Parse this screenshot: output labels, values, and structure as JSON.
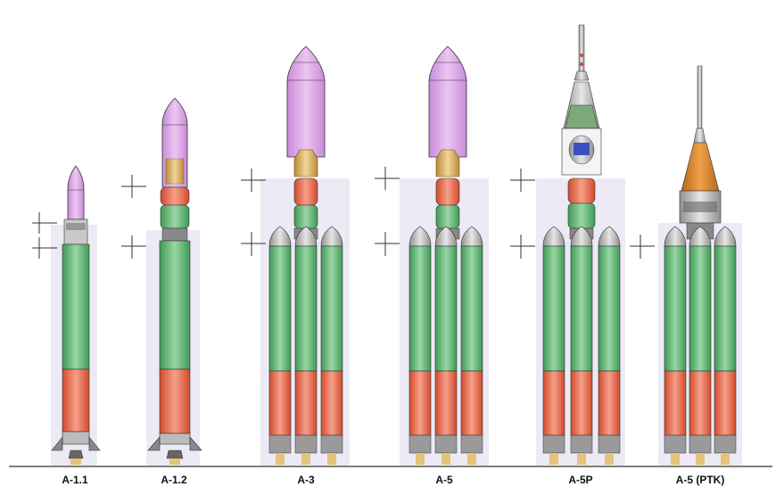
{
  "rockets": [
    {
      "label": "A-1.1"
    },
    {
      "label": "A-1.2"
    },
    {
      "label": "A-3"
    },
    {
      "label": "A-5"
    },
    {
      "label": "A-5P"
    },
    {
      "label": "A-5 (PTK)"
    }
  ],
  "colors": {
    "fairing": "#d9a3e6",
    "booster": "#6fc07f",
    "tank_red": "#e8603f",
    "panel_bg": "#eaeaf6",
    "payload_gold": "#d8b86a",
    "capsule_orange": "#d88a2a",
    "capsule_green": "#7da878",
    "ground_line": "#333333"
  }
}
